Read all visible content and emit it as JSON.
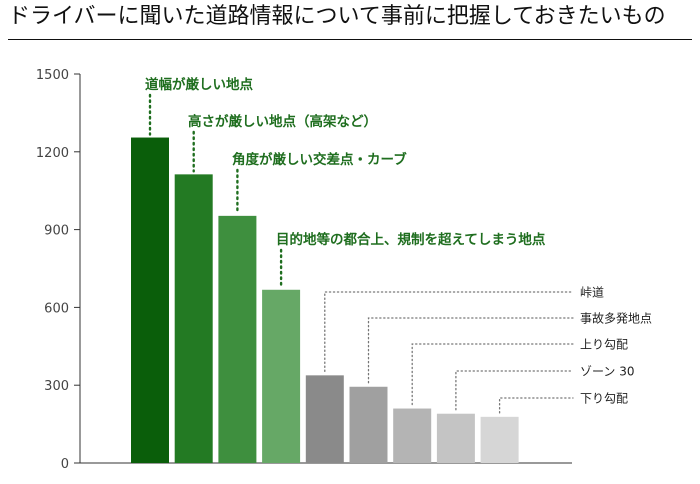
{
  "title": "ドライバーに聞いた道路情報について事前に把握しておきたいもの",
  "chart_data": {
    "type": "bar",
    "title": "",
    "xlabel": "",
    "ylabel": "",
    "ylim": [
      0,
      1500
    ],
    "yticks": [
      0,
      300,
      600,
      900,
      1200,
      1500
    ],
    "ytick_labels": [
      "0",
      "300",
      "600",
      "900",
      "1200",
      "1500"
    ],
    "grid": false,
    "categories": [
      "道幅が厳しい地点",
      "高さが厳しい地点（高架など）",
      "角度が厳しい交差点・カーブ",
      "目的地等の都合上、規制を超えてしまう地点",
      "峠道",
      "事故多発地点",
      "上り勾配",
      "ゾーン 30",
      "下り勾配"
    ],
    "values": [
      1255,
      1113,
      953,
      668,
      338,
      294,
      210,
      190,
      178
    ],
    "colors": [
      "#0a5e0a",
      "#237a23",
      "#3e8f3e",
      "#66a866",
      "#8a8a8a",
      "#a0a0a0",
      "#b4b4b4",
      "#c4c4c4",
      "#d6d6d6"
    ]
  }
}
